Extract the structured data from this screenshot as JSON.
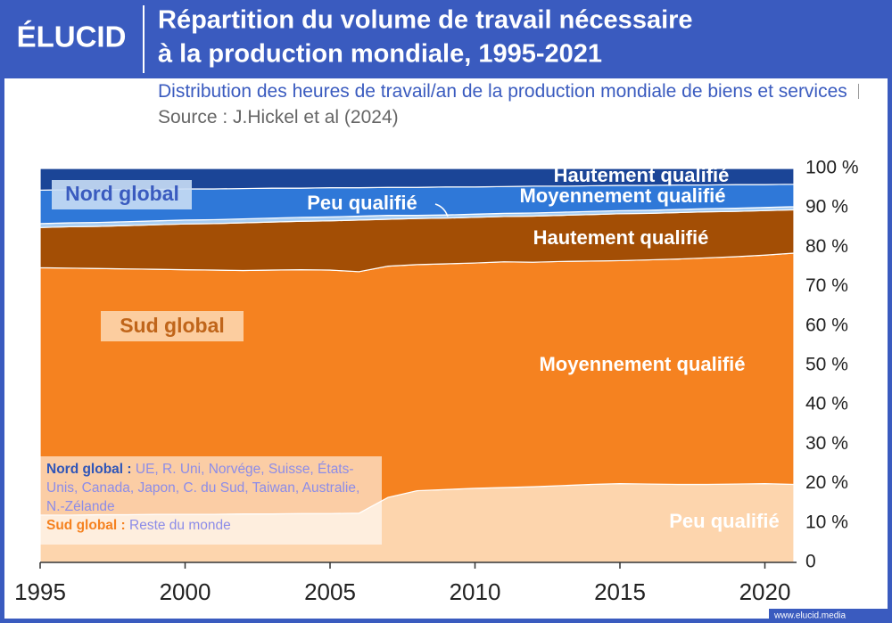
{
  "logo": "ÉLUCID",
  "footer": "www.elucid.media",
  "chart_data": {
    "type": "stacked_area",
    "title": [
      "Répartition du volume de travail nécessaire",
      "à la production mondiale, 1995-2021"
    ],
    "subtitle": "Distribution des heures de travail/an de la production mondiale de biens et services",
    "source": "Source : J.Hickel et al (2024)",
    "x": [
      1995,
      1996,
      1997,
      1998,
      1999,
      2000,
      2001,
      2002,
      2003,
      2004,
      2005,
      2006,
      2007,
      2008,
      2009,
      2010,
      2011,
      2012,
      2013,
      2014,
      2015,
      2016,
      2017,
      2018,
      2019,
      2020,
      2021
    ],
    "xlim": [
      1995,
      2021
    ],
    "xticks": [
      1995,
      2000,
      2005,
      2010,
      2015,
      2020
    ],
    "ylim": [
      0,
      100
    ],
    "yticks": [
      0,
      {
        "value": 10,
        "label": "10 %"
      },
      {
        "value": 20,
        "label": "20 %"
      },
      {
        "value": 30,
        "label": "30 %"
      },
      {
        "value": 40,
        "label": "40 %"
      },
      {
        "value": 50,
        "label": "50 %"
      },
      {
        "value": 60,
        "label": "60 %"
      },
      {
        "value": 70,
        "label": "70 %"
      },
      {
        "value": 80,
        "label": "80 %"
      },
      {
        "value": 90,
        "label": "90 %"
      },
      {
        "value": 100,
        "label": "100 %"
      }
    ],
    "series": [
      {
        "name": "Peu qualifié",
        "color": "#fdd5ad",
        "values": [
          12.0,
          12.0,
          12.1,
          12.1,
          12.2,
          12.2,
          12.2,
          12.3,
          12.3,
          12.4,
          12.4,
          12.5,
          16.5,
          18.2,
          18.5,
          18.8,
          19.0,
          19.2,
          19.5,
          19.8,
          20.0,
          19.9,
          19.8,
          19.8,
          19.9,
          20.0,
          19.8
        ]
      },
      {
        "name": "Moyennement qualifié",
        "color": "#f58220",
        "values": [
          62.8,
          62.7,
          62.5,
          62.4,
          62.2,
          62.1,
          62.0,
          61.8,
          61.9,
          61.9,
          61.8,
          61.3,
          58.7,
          57.4,
          57.3,
          57.2,
          57.3,
          57.0,
          56.9,
          56.7,
          56.6,
          56.9,
          57.2,
          57.5,
          57.7,
          58.0,
          58.7
        ]
      },
      {
        "name": "Hautement qualifié",
        "color": "#a34e05",
        "values": [
          10.2,
          10.5,
          10.7,
          11.0,
          11.3,
          11.6,
          11.8,
          12.1,
          12.2,
          12.3,
          12.5,
          13.1,
          11.9,
          11.7,
          11.6,
          11.6,
          11.5,
          11.7,
          11.7,
          11.8,
          11.9,
          11.8,
          11.8,
          11.7,
          11.5,
          11.3,
          11.0
        ]
      },
      {
        "name": "Peu qualifié",
        "color": "#a8cdf2",
        "values": [
          1.0,
          1.0,
          1.0,
          1.0,
          1.0,
          1.0,
          1.0,
          1.0,
          1.0,
          1.0,
          1.0,
          1.0,
          1.0,
          0.8,
          0.8,
          0.8,
          0.8,
          0.8,
          0.8,
          0.8,
          0.8,
          0.8,
          0.8,
          0.8,
          0.8,
          0.8,
          0.8
        ]
      },
      {
        "name": "Moyennement qualifié",
        "color": "#2f78d8",
        "values": [
          8.5,
          8.4,
          8.3,
          8.2,
          8.0,
          7.9,
          7.8,
          7.7,
          7.6,
          7.4,
          7.4,
          7.2,
          7.1,
          7.1,
          7.1,
          6.9,
          6.8,
          6.8,
          6.6,
          6.5,
          6.4,
          6.3,
          6.2,
          6.0,
          6.0,
          5.8,
          5.7
        ]
      },
      {
        "name": "Hautement qualifié",
        "color": "#1b4597",
        "values": [
          5.5,
          5.4,
          5.4,
          5.3,
          5.3,
          5.2,
          5.2,
          5.1,
          5.0,
          5.0,
          4.9,
          4.9,
          4.8,
          4.8,
          4.7,
          4.7,
          4.6,
          4.5,
          4.5,
          4.4,
          4.3,
          4.3,
          4.2,
          4.2,
          4.1,
          4.1,
          4.0
        ]
      }
    ],
    "annotations": [
      "Sud global",
      "Nord global"
    ],
    "note": {
      "nord_label": "Nord global :",
      "nord_text": "UE, R. Uni, Norvége, Suisse, États-Unis, Canada, Japon, C. du Sud, Taiwan, Australie, N.-Zélande",
      "sud_label": "Sud global :",
      "sud_text": "Reste du monde"
    }
  }
}
